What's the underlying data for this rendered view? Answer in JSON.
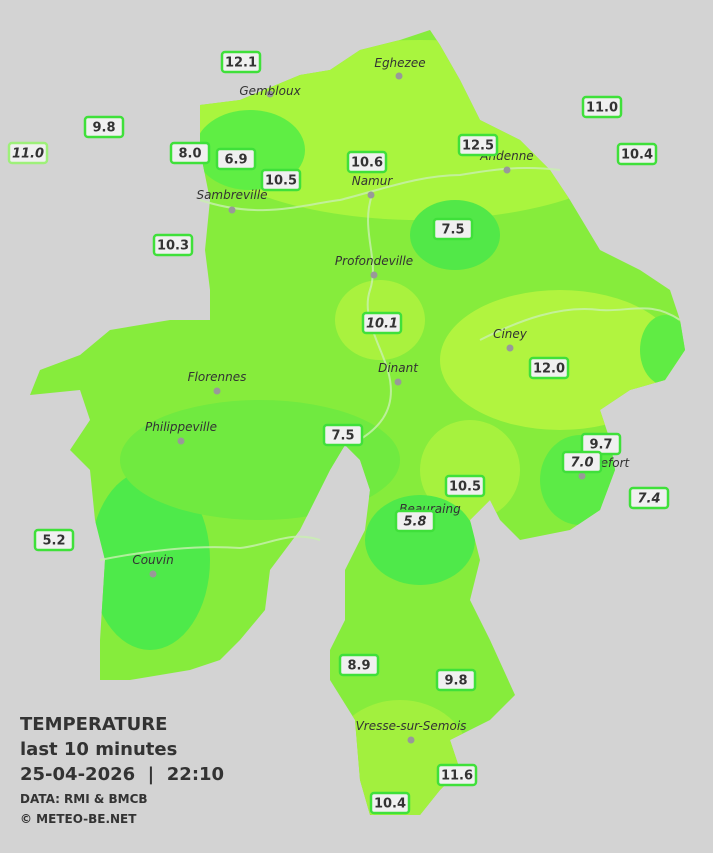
{
  "cities": [
    "Eghezee",
    "Gembloux",
    "Andenne",
    "Namur",
    "Sambreville",
    "Profondeville",
    "Ciney",
    "Dinant",
    "Florennes",
    "Philippeville",
    "Rochefort",
    "Beauraing",
    "Couvin",
    "Vresse-sur-Semois"
  ],
  "stations": [
    {
      "value": "12.1"
    },
    {
      "value": "9.8"
    },
    {
      "value": "11.0",
      "italic": true
    },
    {
      "value": "8.0"
    },
    {
      "value": "6.9"
    },
    {
      "value": "10.5"
    },
    {
      "value": "10.6"
    },
    {
      "value": "12.5"
    },
    {
      "value": "11.0"
    },
    {
      "value": "10.4"
    },
    {
      "value": "7.5"
    },
    {
      "value": "10.3"
    },
    {
      "value": "10.1",
      "italic": true
    },
    {
      "value": "12.0"
    },
    {
      "value": "7.5"
    },
    {
      "value": "9.7"
    },
    {
      "value": "7.0",
      "italic": true
    },
    {
      "value": "7.4",
      "italic": true
    },
    {
      "value": "10.5"
    },
    {
      "value": "5.8",
      "italic": true
    },
    {
      "value": "5.2"
    },
    {
      "value": "8.9"
    },
    {
      "value": "9.8"
    },
    {
      "value": "11.6"
    },
    {
      "value": "10.4"
    }
  ],
  "caption": {
    "title": "TEMPERATURE",
    "subtitle": "last 10 minutes",
    "datetime": "25-04-2026  |  22:10",
    "source": "DATA: RMI & BMCB",
    "credit": "© METEO-BE.NET"
  }
}
